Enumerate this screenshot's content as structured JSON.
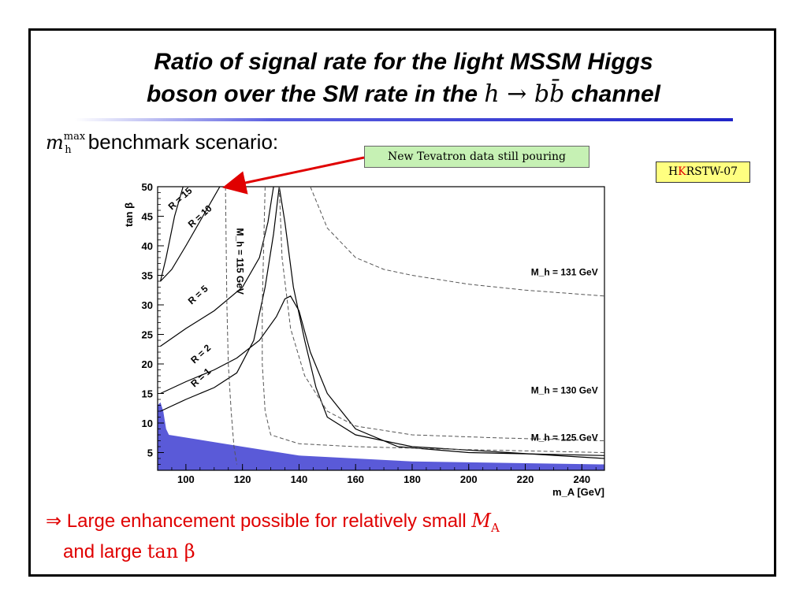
{
  "slide": {
    "title_line1": "Ratio of signal rate for the light MSSM Higgs",
    "title_line2_prefix": "boson over the SM rate in the",
    "title_line2_math": "h → bb̄",
    "title_line2_suffix": "channel",
    "subtitle_symbol": "m",
    "subtitle_sup": "max",
    "subtitle_sub": "h",
    "subtitle_text": "benchmark scenario:",
    "callout": "New Tevatron data still pouring",
    "tag_part1": "H",
    "tag_part2": "K",
    "tag_part3": "RSTW-07",
    "conclusion_line1_text": "⇒ Large enhancement possible for relatively small",
    "conclusion_line1_math": "M",
    "conclusion_line1_math_sub": "A",
    "conclusion_line2_text": "and large",
    "conclusion_line2_math": "tan β"
  },
  "colors": {
    "accent_red": "#e00000",
    "excluded_fill": "#5a5ad8",
    "callout_bg": "#c6f1b4",
    "tag_bg": "#ffff80",
    "rule_blue": "#2025c8"
  },
  "chart_data": {
    "type": "line",
    "xlabel": "m_A [GeV]",
    "ylabel": "tan β",
    "xlim": [
      90,
      248
    ],
    "ylim": [
      2,
      50
    ],
    "x_ticks": [
      100,
      120,
      140,
      160,
      180,
      200,
      220,
      240
    ],
    "y_ticks": [
      5,
      10,
      15,
      20,
      25,
      30,
      35,
      40,
      45,
      50
    ],
    "series": [
      {
        "name": "R = 15",
        "style": "solid",
        "label": "R = 15",
        "points": [
          [
            91,
            34
          ],
          [
            93,
            38
          ],
          [
            96,
            45
          ],
          [
            99,
            50
          ]
        ]
      },
      {
        "name": "R = 10",
        "style": "solid",
        "label": "R = 10",
        "points": [
          [
            91,
            34
          ],
          [
            95,
            36
          ],
          [
            100,
            40
          ],
          [
            106,
            45
          ],
          [
            112,
            50
          ]
        ]
      },
      {
        "name": "R = 5",
        "style": "solid",
        "label": "R = 5",
        "points": [
          [
            91,
            23
          ],
          [
            100,
            26
          ],
          [
            110,
            29
          ],
          [
            120,
            33
          ],
          [
            126,
            38
          ],
          [
            129,
            44
          ],
          [
            131,
            50
          ]
        ]
      },
      {
        "name": "R = 2",
        "style": "solid",
        "label": "R = 2",
        "points": [
          [
            91,
            15
          ],
          [
            100,
            17
          ],
          [
            110,
            19
          ],
          [
            118,
            21
          ],
          [
            126,
            24
          ],
          [
            132,
            28
          ],
          [
            135,
            31
          ],
          [
            137,
            31.5
          ],
          [
            140,
            29
          ],
          [
            144,
            22
          ],
          [
            150,
            15
          ],
          [
            160,
            9
          ],
          [
            175,
            6
          ],
          [
            200,
            5
          ],
          [
            248,
            4.5
          ]
        ]
      },
      {
        "name": "R = 1",
        "style": "solid",
        "label": "R = 1",
        "points": [
          [
            91,
            12
          ],
          [
            100,
            14
          ],
          [
            110,
            16
          ],
          [
            118,
            18.5
          ],
          [
            124,
            24
          ],
          [
            128,
            33
          ],
          [
            131,
            42
          ],
          [
            133,
            50
          ],
          [
            135,
            44
          ],
          [
            138,
            33
          ],
          [
            142,
            24
          ],
          [
            146,
            16
          ],
          [
            150,
            11
          ],
          [
            160,
            8
          ],
          [
            180,
            6
          ],
          [
            248,
            4
          ]
        ]
      },
      {
        "name": "M_h = 115 GeV",
        "style": "dashed",
        "label": "M_h = 115 GeV",
        "points": [
          [
            114,
            50
          ],
          [
            114.5,
            30
          ],
          [
            115,
            20
          ],
          [
            116,
            12
          ],
          [
            117,
            6
          ],
          [
            118,
            3
          ]
        ]
      },
      {
        "name": "M_h = 125 GeV",
        "style": "dashed",
        "label": "M_h = 125 GeV",
        "points": [
          [
            128,
            50
          ],
          [
            127,
            30
          ],
          [
            127,
            20
          ],
          [
            128,
            12
          ],
          [
            130,
            8
          ],
          [
            140,
            6.5
          ],
          [
            160,
            6
          ],
          [
            200,
            5.5
          ],
          [
            248,
            5
          ]
        ]
      },
      {
        "name": "M_h = 130 GeV",
        "style": "dashed",
        "label": "M_h = 130 GeV",
        "points": [
          [
            133,
            50
          ],
          [
            134,
            38
          ],
          [
            137,
            26
          ],
          [
            142,
            18
          ],
          [
            150,
            12
          ],
          [
            160,
            9.5
          ],
          [
            180,
            8
          ],
          [
            210,
            7.5
          ],
          [
            248,
            7
          ]
        ]
      },
      {
        "name": "M_h = 131 GeV",
        "style": "dashed",
        "label": "M_h = 131 GeV",
        "points": [
          [
            144,
            50
          ],
          [
            150,
            43
          ],
          [
            160,
            38
          ],
          [
            170,
            36
          ],
          [
            180,
            35
          ],
          [
            200,
            33.5
          ],
          [
            220,
            32.5
          ],
          [
            248,
            31.5
          ]
        ]
      }
    ],
    "curve_labels": [
      {
        "text": "R = 15",
        "x": 95,
        "y": 46
      },
      {
        "text": "R = 10",
        "x": 102,
        "y": 43
      },
      {
        "text": "R = 5",
        "x": 102,
        "y": 30
      },
      {
        "text": "R = 2",
        "x": 103,
        "y": 20
      },
      {
        "text": "R = 1",
        "x": 103,
        "y": 16
      },
      {
        "text": "M_h = 115 GeV",
        "x": 118,
        "y": 43
      },
      {
        "text": "M_h = 131 GeV",
        "x": 222,
        "y": 35
      },
      {
        "text": "M_h = 130 GeV",
        "x": 222,
        "y": 15
      },
      {
        "text": "M_h = 125 GeV",
        "x": 222,
        "y": 7
      }
    ],
    "excluded_region": [
      [
        90,
        2
      ],
      [
        90,
        13
      ],
      [
        91,
        13.5
      ],
      [
        92,
        12
      ],
      [
        93,
        9
      ],
      [
        94,
        8
      ],
      [
        120,
        6
      ],
      [
        140,
        4.5
      ],
      [
        180,
        3.5
      ],
      [
        248,
        3
      ],
      [
        248,
        2
      ]
    ]
  }
}
